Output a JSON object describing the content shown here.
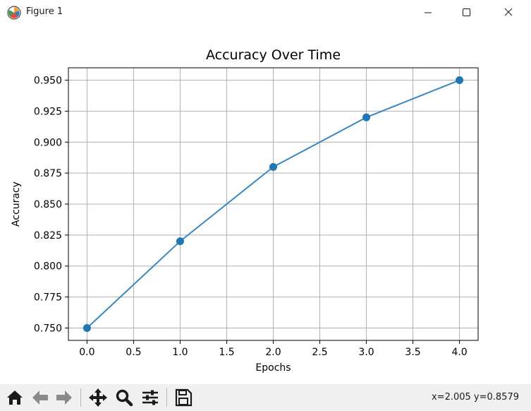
{
  "window": {
    "title": "Figure 1",
    "app_icon": "matplotlib-logo-icon",
    "controls": {
      "minimize_icon": "minimize-icon",
      "maximize_icon": "maximize-icon",
      "close_icon": "close-icon"
    }
  },
  "toolbar": {
    "buttons": [
      {
        "icon": "home-icon"
      },
      {
        "icon": "back-arrow-icon"
      },
      {
        "icon": "forward-arrow-icon"
      },
      {
        "icon": "pan-move-icon"
      },
      {
        "icon": "zoom-magnifier-icon"
      },
      {
        "icon": "configure-subplots-icon"
      },
      {
        "icon": "save-floppy-icon"
      }
    ],
    "coords_text": "x=2.005 y=0.8579"
  },
  "colors": {
    "line": "#3a87be",
    "marker": "#1f77b4",
    "grid": "#b0b0b0",
    "toolbar_bg": "#f0f0f0"
  },
  "chart_data": {
    "type": "line",
    "title": "Accuracy Over Time",
    "xlabel": "Epochs",
    "ylabel": "Accuracy",
    "x": [
      0,
      1,
      2,
      3,
      4
    ],
    "y": [
      0.75,
      0.82,
      0.88,
      0.92,
      0.95
    ],
    "xlim": [
      -0.2,
      4.2
    ],
    "ylim": [
      0.74,
      0.96
    ],
    "xticks": [
      0.0,
      0.5,
      1.0,
      1.5,
      2.0,
      2.5,
      3.0,
      3.5,
      4.0
    ],
    "xtick_labels": [
      "0.0",
      "0.5",
      "1.0",
      "1.5",
      "2.0",
      "2.5",
      "3.0",
      "3.5",
      "4.0"
    ],
    "yticks": [
      0.75,
      0.775,
      0.8,
      0.825,
      0.85,
      0.875,
      0.9,
      0.925,
      0.95
    ],
    "ytick_labels": [
      "0.750",
      "0.775",
      "0.800",
      "0.825",
      "0.850",
      "0.875",
      "0.900",
      "0.925",
      "0.950"
    ],
    "grid": true,
    "marker": "circle"
  }
}
